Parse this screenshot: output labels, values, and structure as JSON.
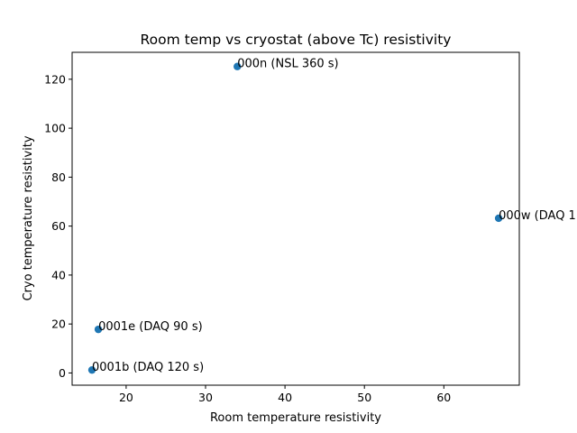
{
  "chart_data": {
    "type": "scatter",
    "title": "Room temp vs cryostat (above Tc) resistivity",
    "xlabel": "Room temperature resistivity",
    "ylabel": "Cryo temperature resistivity",
    "xlim": [
      13.2,
      69.5
    ],
    "ylim": [
      -5,
      131
    ],
    "xticks": [
      20,
      30,
      40,
      50,
      60
    ],
    "yticks": [
      0,
      20,
      40,
      60,
      80,
      100,
      120
    ],
    "grid": false,
    "point_color": "#1f77b4",
    "points": [
      {
        "x": 34.0,
        "y": 125.2,
        "label": "000n (NSL 360 s)"
      },
      {
        "x": 66.9,
        "y": 63.2,
        "label": "000w (DAQ 1"
      },
      {
        "x": 16.5,
        "y": 17.8,
        "label": "0001e (DAQ 90 s)"
      },
      {
        "x": 15.7,
        "y": 1.2,
        "label": "0001b (DAQ 120 s)"
      }
    ]
  }
}
